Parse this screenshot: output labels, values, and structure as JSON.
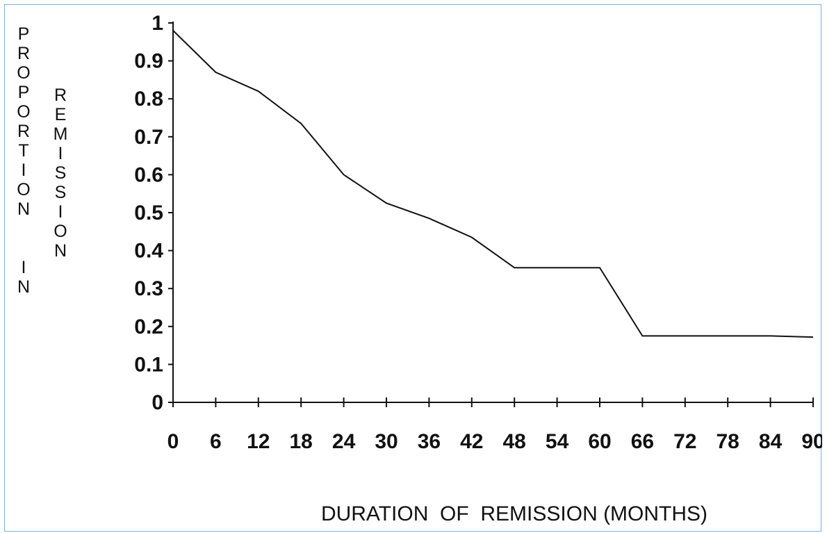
{
  "chart_data": {
    "type": "line",
    "title": "",
    "xlabel": "DURATION  OF  REMISSION (MONTHS)",
    "ylabel_lines": [
      "PROPORTION",
      "IN",
      "REMISSION"
    ],
    "x_ticks": [
      0,
      6,
      12,
      18,
      24,
      30,
      36,
      42,
      48,
      54,
      60,
      66,
      72,
      78,
      84,
      90
    ],
    "y_ticks": [
      "0",
      "0.1",
      "0.2",
      "0.3",
      "0.4",
      "0.5",
      "0.6",
      "0.7",
      "0.8",
      "0.9",
      "1"
    ],
    "xlim": [
      0,
      90
    ],
    "ylim": [
      0,
      1
    ],
    "grid": false,
    "series": [
      {
        "x": [
          0,
          6,
          12,
          18,
          24,
          30,
          36,
          42,
          48,
          54,
          60,
          66,
          72,
          78,
          84,
          90
        ],
        "y": [
          0.98,
          0.87,
          0.82,
          0.735,
          0.6,
          0.525,
          0.485,
          0.435,
          0.355,
          0.355,
          0.355,
          0.175,
          0.175,
          0.175,
          0.175,
          0.172
        ]
      }
    ],
    "line_color": "#111111"
  }
}
